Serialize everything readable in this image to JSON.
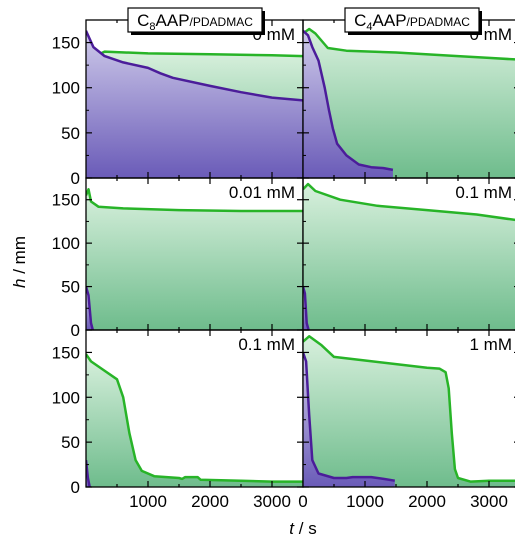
{
  "figure": {
    "y_axis_label_italic": "h",
    "y_axis_label_unit": " / mm",
    "x_axis_label_italic": "t",
    "x_axis_label_unit": " / s"
  },
  "chart_data": [
    {
      "type": "area",
      "column_title": {
        "prefix": "C",
        "subscript": "8",
        "main": "AAP",
        "small": "/PDADMAC"
      },
      "conc_label": "0 mM",
      "xlim": [
        0,
        3500
      ],
      "ylim": [
        0,
        175
      ],
      "x_ticks": [],
      "y_ticks": [
        0,
        50,
        100,
        150
      ],
      "y_tick_labels": [
        "0",
        "50",
        "100",
        "150"
      ],
      "series": [
        {
          "role": "foam",
          "points": [
            [
              0,
              128
            ],
            [
              60,
              132
            ],
            [
              300,
              140
            ],
            [
              1000,
              138
            ],
            [
              2000,
              137
            ],
            [
              3000,
              136
            ],
            [
              3500,
              135
            ]
          ]
        },
        {
          "role": "liquid",
          "points": [
            [
              0,
              163
            ],
            [
              120,
              145
            ],
            [
              300,
              135
            ],
            [
              600,
              128
            ],
            [
              1000,
              122
            ],
            [
              1200,
              116
            ],
            [
              1400,
              111
            ],
            [
              2000,
              102
            ],
            [
              2500,
              95
            ],
            [
              3000,
              89
            ],
            [
              3500,
              86
            ]
          ]
        }
      ]
    },
    {
      "type": "area",
      "column_title": {
        "prefix": "C",
        "subscript": "4",
        "main": "AAP",
        "small": "/PDADMAC"
      },
      "conc_label": "0 mM",
      "xlim": [
        0,
        3500
      ],
      "ylim": [
        0,
        175
      ],
      "x_ticks": [],
      "y_ticks": [
        0,
        50,
        100,
        150
      ],
      "y_tick_labels": [],
      "series": [
        {
          "role": "foam",
          "points": [
            [
              0,
              160
            ],
            [
              100,
              165
            ],
            [
              200,
              160
            ],
            [
              400,
              144
            ],
            [
              700,
              141
            ],
            [
              1500,
              139
            ],
            [
              2500,
              135
            ],
            [
              3000,
              133
            ],
            [
              3500,
              131
            ]
          ]
        },
        {
          "role": "liquid",
          "points": [
            [
              0,
              163
            ],
            [
              80,
              158
            ],
            [
              150,
              145
            ],
            [
              250,
              130
            ],
            [
              350,
              100
            ],
            [
              420,
              75
            ],
            [
              480,
              55
            ],
            [
              550,
              38
            ],
            [
              700,
              25
            ],
            [
              900,
              15
            ],
            [
              1100,
              12
            ],
            [
              1300,
              11
            ],
            [
              1450,
              9
            ]
          ]
        }
      ]
    },
    {
      "type": "area",
      "conc_label": "0.01 mM",
      "xlim": [
        0,
        3500
      ],
      "ylim": [
        0,
        175
      ],
      "x_ticks": [],
      "y_ticks": [
        0,
        50,
        100,
        150
      ],
      "y_tick_labels": [
        "0",
        "50",
        "100",
        "150"
      ],
      "series": [
        {
          "role": "foam",
          "points": [
            [
              0,
              155
            ],
            [
              40,
              162
            ],
            [
              80,
              148
            ],
            [
              200,
              142
            ],
            [
              600,
              140
            ],
            [
              1500,
              138
            ],
            [
              2500,
              137
            ],
            [
              3500,
              137
            ]
          ]
        },
        {
          "role": "liquid",
          "points": [
            [
              0,
              50
            ],
            [
              40,
              40
            ],
            [
              80,
              8
            ],
            [
              110,
              0
            ]
          ]
        }
      ]
    },
    {
      "type": "area",
      "conc_label": "0.1 mM",
      "xlim": [
        0,
        3500
      ],
      "ylim": [
        0,
        175
      ],
      "x_ticks": [],
      "y_ticks": [
        0,
        50,
        100,
        150
      ],
      "y_tick_labels": [],
      "series": [
        {
          "role": "foam",
          "points": [
            [
              0,
              162
            ],
            [
              80,
              168
            ],
            [
              200,
              160
            ],
            [
              600,
              150
            ],
            [
              1200,
              143
            ],
            [
              2000,
              138
            ],
            [
              2800,
              133
            ],
            [
              3500,
              126
            ]
          ]
        },
        {
          "role": "liquid",
          "points": [
            [
              0,
              50
            ],
            [
              30,
              42
            ],
            [
              60,
              8
            ],
            [
              90,
              0
            ]
          ]
        }
      ]
    },
    {
      "type": "area",
      "conc_label": "0.1 mM",
      "xlim": [
        0,
        3500
      ],
      "ylim": [
        0,
        175
      ],
      "x_ticks": [
        1000,
        2000,
        3000
      ],
      "x_tick_labels": [
        "1000",
        "2000",
        "3000"
      ],
      "y_ticks": [
        0,
        50,
        100,
        150
      ],
      "y_tick_labels": [
        "0",
        "50",
        "100",
        "150"
      ],
      "series": [
        {
          "role": "foam",
          "points": [
            [
              0,
              148
            ],
            [
              80,
              140
            ],
            [
              250,
              132
            ],
            [
              500,
              120
            ],
            [
              600,
              100
            ],
            [
              700,
              60
            ],
            [
              800,
              30
            ],
            [
              900,
              18
            ],
            [
              1100,
              12
            ],
            [
              1500,
              10
            ],
            [
              1550,
              9
            ],
            [
              1600,
              11
            ],
            [
              1800,
              11
            ],
            [
              1850,
              8
            ],
            [
              2500,
              7
            ],
            [
              3000,
              6
            ],
            [
              3500,
              6
            ]
          ]
        },
        {
          "role": "liquid",
          "points": [
            [
              0,
              30
            ],
            [
              30,
              10
            ],
            [
              60,
              0
            ]
          ]
        }
      ]
    },
    {
      "type": "area",
      "conc_label": "1 mM",
      "xlim": [
        0,
        3500
      ],
      "ylim": [
        0,
        175
      ],
      "x_ticks": [
        1000,
        2000,
        3000
      ],
      "x_tick_labels": [
        "0",
        "1000",
        "2000",
        "3000"
      ],
      "x_tick_label_values": [
        0,
        1000,
        2000,
        3000
      ],
      "y_ticks": [
        0,
        50,
        100,
        150
      ],
      "y_tick_labels": [],
      "series": [
        {
          "role": "foam",
          "points": [
            [
              0,
              162
            ],
            [
              100,
              168
            ],
            [
              300,
              158
            ],
            [
              500,
              145
            ],
            [
              1000,
              141
            ],
            [
              1500,
              137
            ],
            [
              2000,
              133
            ],
            [
              2200,
              132
            ],
            [
              2300,
              128
            ],
            [
              2350,
              110
            ],
            [
              2400,
              60
            ],
            [
              2450,
              20
            ],
            [
              2500,
              10
            ],
            [
              2700,
              6
            ],
            [
              3000,
              7
            ],
            [
              3500,
              7
            ]
          ]
        },
        {
          "role": "liquid",
          "points": [
            [
              0,
              150
            ],
            [
              50,
              140
            ],
            [
              100,
              80
            ],
            [
              150,
              30
            ],
            [
              250,
              15
            ],
            [
              500,
              10
            ],
            [
              700,
              10
            ],
            [
              800,
              11
            ],
            [
              1100,
              11
            ],
            [
              1300,
              9
            ],
            [
              1480,
              7
            ]
          ]
        }
      ]
    }
  ],
  "colors": {
    "foam_line": "#28b428",
    "foam_fill_top": "#d8f0dd",
    "foam_fill_bottom": "#6ebc8c",
    "liquid_line": "#4b1d9a",
    "liquid_fill_top": "#cfcbea",
    "liquid_fill_bottom": "#6a5bb8"
  }
}
